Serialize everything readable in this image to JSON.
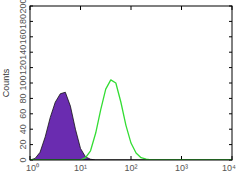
{
  "chart_data": {
    "type": "line",
    "log": "x",
    "y_label": "Counts",
    "x": [
      1,
      1.26,
      1.58,
      2,
      2.51,
      3.16,
      3.98,
      5.01,
      6.31,
      7.94,
      10,
      12.6,
      15.8,
      20,
      25.1,
      31.6,
      39.8,
      50.1,
      63.1,
      79.4,
      100,
      126,
      158,
      200,
      251,
      316,
      398,
      501,
      631,
      794,
      1000,
      1259,
      1585,
      1995,
      2512,
      3162,
      3981,
      5012,
      6310,
      7943,
      10000
    ],
    "series": [
      {
        "name": null,
        "type": "area",
        "color": "#6a2cb0",
        "values": [
          0,
          2,
          10,
          30,
          55,
          75,
          86,
          88,
          70,
          40,
          15,
          4,
          1,
          0,
          0,
          0,
          0,
          0,
          0,
          0,
          0,
          0,
          0,
          0,
          0,
          0,
          0,
          0,
          0,
          0,
          0,
          0,
          0,
          0,
          0,
          0,
          0,
          0,
          0,
          0,
          0
        ]
      },
      {
        "name": null,
        "type": "line",
        "color": "#33dd33",
        "values": [
          0,
          0,
          0,
          0,
          0,
          0,
          0,
          0,
          0,
          0,
          0,
          3,
          12,
          35,
          65,
          92,
          104,
          100,
          75,
          45,
          22,
          9,
          3,
          1,
          0,
          0,
          0,
          0,
          0,
          0,
          0,
          0,
          0,
          0,
          0,
          0,
          0,
          0,
          0,
          0,
          0
        ]
      }
    ],
    "xlim": [
      1,
      10000
    ],
    "xticks": [
      {
        "value": 1,
        "label": "10⁰"
      },
      {
        "value": 10,
        "label": "10¹"
      },
      {
        "value": 100,
        "label": "10²"
      },
      {
        "value": 1000,
        "label": "10³"
      },
      {
        "value": 10000,
        "label": "10⁴"
      }
    ],
    "ylim": [
      0,
      200
    ],
    "yticks": [
      0,
      20,
      40,
      60,
      80,
      100,
      120,
      140,
      160,
      180,
      200
    ],
    "grid": false
  }
}
